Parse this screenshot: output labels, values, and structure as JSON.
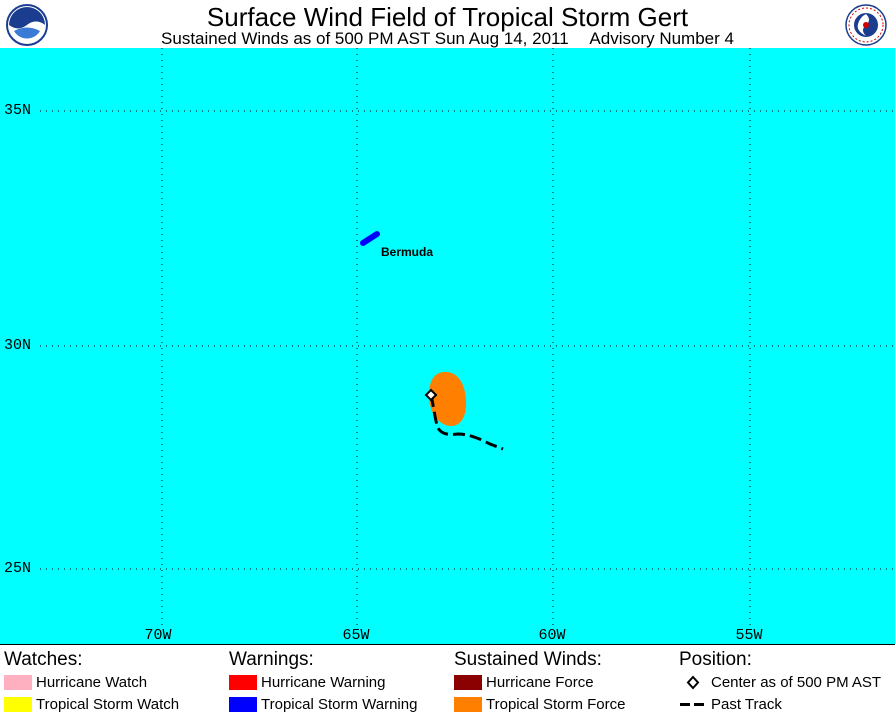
{
  "header": {
    "title": "Surface Wind Field of Tropical Storm Gert",
    "subtitle_time": "Sustained Winds as of 500 PM AST Sun Aug 14, 2011",
    "subtitle_advisory": "Advisory Number 4",
    "left_logo": "noaa-logo",
    "right_logo": "national-weather-service-logo"
  },
  "map": {
    "background_color": "#00ffff",
    "lat_labels": [
      "35N",
      "30N",
      "25N"
    ],
    "lon_labels": [
      "70W",
      "65W",
      "60W",
      "55W"
    ],
    "place_label": "Bermuda",
    "colors": {
      "tropical_storm_warning": "#0000ff",
      "tropical_storm_force": "#ff8000",
      "track": "#000000"
    }
  },
  "legend": {
    "watches": {
      "heading": "Watches:",
      "items": [
        {
          "label": "Hurricane Watch",
          "color": "#ffb0c0"
        },
        {
          "label": "Tropical Storm Watch",
          "color": "#ffff00"
        }
      ]
    },
    "warnings": {
      "heading": "Warnings:",
      "items": [
        {
          "label": "Hurricane Warning",
          "color": "#ff0000"
        },
        {
          "label": "Tropical Storm Warning",
          "color": "#0000ff"
        }
      ]
    },
    "winds": {
      "heading": "Sustained Winds:",
      "items": [
        {
          "label": "Hurricane Force",
          "color": "#8b0000"
        },
        {
          "label": "Tropical Storm Force",
          "color": "#ff8000"
        }
      ]
    },
    "position": {
      "heading": "Position:",
      "items": [
        {
          "label": "Center as of 500 PM AST",
          "icon": "diamond-icon"
        },
        {
          "label": "Past Track",
          "icon": "dashed-line-icon"
        }
      ]
    }
  }
}
